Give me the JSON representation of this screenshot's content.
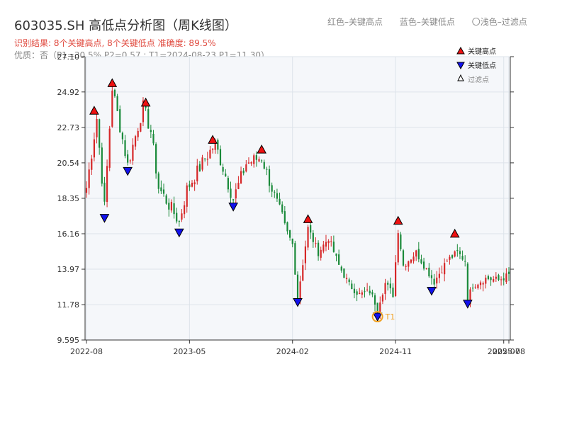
{
  "header": {
    "title": "603035.SH 高低点分析图（周K线图）",
    "result_line": "识别结果: 8个关键高点, 8个关键低点  准确度: 89.5%",
    "quality_line": "优质：否（P1=30.5%  P2=0.57 ; T1=2024-08-23 P1=11.30）",
    "legend_red": "红色–关键高点",
    "legend_blue": "蓝色–关键低点",
    "legend_light": "〇浅色–过滤点"
  },
  "colors": {
    "up": "#d62728",
    "down": "#1a8a3a",
    "high_marker": "#ee1111",
    "low_marker": "#1111ee",
    "annotation": "#f0a020",
    "plot_bg": "#f5f7fa"
  },
  "chart_data": {
    "type": "candlestick",
    "y_ticks": [
      "9.595",
      "11.78",
      "13.97",
      "16.16",
      "18.35",
      "20.54",
      "22.73",
      "24.92",
      "27.10"
    ],
    "ylim": [
      9.595,
      27.1
    ],
    "x_ticks": [
      {
        "label": "2022-08",
        "i": 0
      },
      {
        "label": "2023-05",
        "i": 40
      },
      {
        "label": "2024-02",
        "i": 80
      },
      {
        "label": "2024-11",
        "i": 120
      },
      {
        "label": "2025-07",
        "i": 162
      },
      {
        "label": "2025-08",
        "i": 164
      }
    ],
    "n_bars": 165,
    "anchors": [
      [
        0,
        19.0
      ],
      [
        4,
        23.3
      ],
      [
        7,
        17.8
      ],
      [
        10,
        25.2
      ],
      [
        16,
        20.4
      ],
      [
        22,
        24.0
      ],
      [
        25,
        22.5
      ],
      [
        28,
        19.0
      ],
      [
        36,
        16.9
      ],
      [
        39,
        18.9
      ],
      [
        46,
        20.8
      ],
      [
        50,
        21.7
      ],
      [
        57,
        18.3
      ],
      [
        62,
        20.5
      ],
      [
        68,
        20.9
      ],
      [
        74,
        18.0
      ],
      [
        78,
        16.2
      ],
      [
        80,
        15.5
      ],
      [
        82,
        12.2
      ],
      [
        86,
        16.5
      ],
      [
        90,
        15.0
      ],
      [
        94,
        15.9
      ],
      [
        98,
        14.2
      ],
      [
        102,
        13.0
      ],
      [
        106,
        12.4
      ],
      [
        110,
        12.6
      ],
      [
        113,
        11.6
      ],
      [
        116,
        13.1
      ],
      [
        119,
        12.4
      ],
      [
        121,
        16.4
      ],
      [
        123,
        14.2
      ],
      [
        128,
        15.0
      ],
      [
        135,
        13.2
      ],
      [
        140,
        14.5
      ],
      [
        144,
        15.0
      ],
      [
        147,
        14.5
      ],
      [
        148,
        12.1
      ],
      [
        150,
        13.0
      ],
      [
        155,
        13.4
      ],
      [
        160,
        13.3
      ],
      [
        164,
        13.6
      ]
    ],
    "key_highs": [
      {
        "i": 3,
        "price": 23.5
      },
      {
        "i": 10,
        "price": 25.2
      },
      {
        "i": 23,
        "price": 24.0
      },
      {
        "i": 49,
        "price": 21.7
      },
      {
        "i": 68,
        "price": 21.1
      },
      {
        "i": 86,
        "price": 16.8
      },
      {
        "i": 121,
        "price": 16.7
      },
      {
        "i": 143,
        "price": 15.9
      }
    ],
    "key_lows": [
      {
        "i": 7,
        "price": 17.4
      },
      {
        "i": 16,
        "price": 20.3
      },
      {
        "i": 36,
        "price": 16.5
      },
      {
        "i": 57,
        "price": 18.1
      },
      {
        "i": 82,
        "price": 12.2
      },
      {
        "i": 134,
        "price": 12.9
      },
      {
        "i": 148,
        "price": 12.1
      },
      {
        "i": 113,
        "price": 11.3
      }
    ],
    "annotation": {
      "i": 113,
      "price": 11.3,
      "text": "T1"
    },
    "legend_items": [
      "关键高点",
      "关键低点",
      "过滤点"
    ]
  }
}
